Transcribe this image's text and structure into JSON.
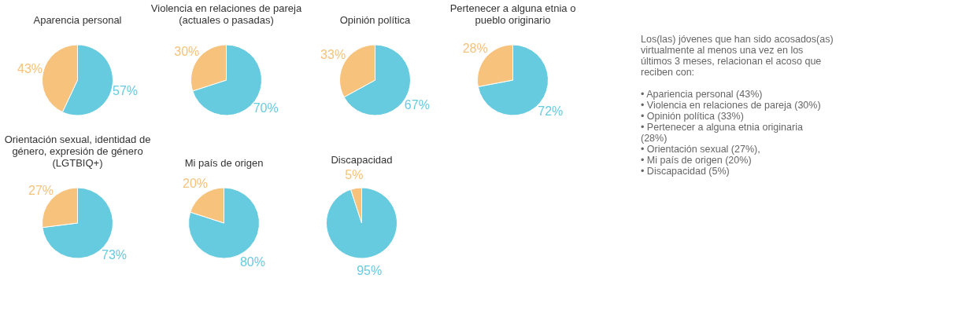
{
  "chart_data": [
    {
      "type": "pie",
      "title": "Aparencia personal",
      "categories": [
        null,
        null
      ],
      "values": [
        57,
        43
      ],
      "colors": [
        "#67cbe0",
        "#f6c27c"
      ],
      "value_labels": [
        "57%",
        "43%"
      ]
    },
    {
      "type": "pie",
      "title": "Violencia en relaciones de pareja (actuales o pasadas)",
      "categories": [
        null,
        null
      ],
      "values": [
        70,
        30
      ],
      "colors": [
        "#67cbe0",
        "#f6c27c"
      ],
      "value_labels": [
        "70%",
        "30%"
      ]
    },
    {
      "type": "pie",
      "title": "Opinión política",
      "categories": [
        null,
        null
      ],
      "values": [
        67,
        33
      ],
      "colors": [
        "#67cbe0",
        "#f6c27c"
      ],
      "value_labels": [
        "67%",
        "33%"
      ]
    },
    {
      "type": "pie",
      "title": "Pertenecer a alguna etnia o pueblo originario",
      "categories": [
        null,
        null
      ],
      "values": [
        72,
        28
      ],
      "colors": [
        "#67cbe0",
        "#f6c27c"
      ],
      "value_labels": [
        "72%",
        "28%"
      ]
    },
    {
      "type": "pie",
      "title": "Orientación sexual, identidad de género, expresión de género (LGTBIQ+)",
      "categories": [
        null,
        null
      ],
      "values": [
        73,
        27
      ],
      "colors": [
        "#67cbe0",
        "#f6c27c"
      ],
      "value_labels": [
        "73%",
        "27%"
      ]
    },
    {
      "type": "pie",
      "title": "Mi país de origen",
      "categories": [
        null,
        null
      ],
      "values": [
        80,
        20
      ],
      "colors": [
        "#67cbe0",
        "#f6c27c"
      ],
      "value_labels": [
        "80%",
        "20%"
      ]
    },
    {
      "type": "pie",
      "title": "Discapacidad",
      "categories": [
        null,
        null
      ],
      "values": [
        95,
        5
      ],
      "colors": [
        "#67cbe0",
        "#f6c27c"
      ],
      "value_labels": [
        "95%",
        "5%"
      ]
    },
    {
      "type": "other",
      "annotations": [
        "Los(las) jóvenes que han sido acosados(as) virtualmente al menos una vez en los últimos 3 meses, relacionan el acoso que reciben con:",
        "• Apariencia personal (43%)",
        "• Violencia en relaciones de pareja (30%)",
        "• Opinión política (33%)",
        "• Pertenecer a alguna etnia originaria (28%)",
        "• Orientación sexual (27%),",
        "• Mi país de origen (20%)",
        "• Discapacidad (5%)"
      ]
    }
  ]
}
